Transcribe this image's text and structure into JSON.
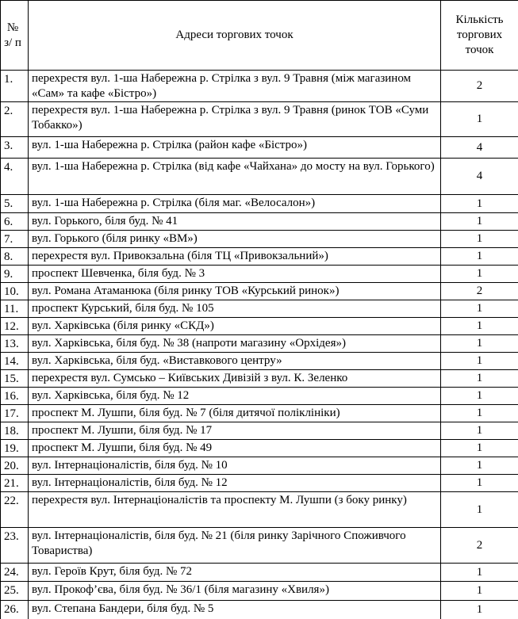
{
  "table": {
    "header": [
      "№ з/ п",
      "Адреси торгових точок",
      "Кількість торгових точок"
    ],
    "rows": [
      [
        "1.",
        "перехрестя вул. 1-ша Набережна р. Стрілка з вул. 9 Травня (між магазином «Сам» та кафе «Бістро»)",
        2
      ],
      [
        "2.",
        "перехрестя вул. 1-ша Набережна р. Стрілка з вул. 9 Травня (ринок ТОВ «Суми Тобакко»)",
        1
      ],
      [
        "3.",
        "вул. 1-ша Набережна р. Стрілка (район кафе «Бістро»)",
        4
      ],
      [
        "4.",
        "вул. 1-ша Набережна р. Стрілка (від кафе «Чайхана» до мосту на вул. Горького)",
        4
      ],
      [
        "5.",
        "вул. 1-ша Набережна р. Стрілка (біля маг. «Велосалон»)",
        1
      ],
      [
        "6.",
        "вул. Горького, біля буд. № 41",
        1
      ],
      [
        "7.",
        "вул. Горького (біля ринку «ВМ»)",
        1
      ],
      [
        "8.",
        "перехрестя вул. Привокзальна (біля ТЦ «Привокзальний»)",
        1
      ],
      [
        "9.",
        "проспект Шевченка, біля буд. № 3",
        1
      ],
      [
        "10.",
        "вул. Романа Атаманюка (біля ринку ТОВ «Курський ринок»)",
        2
      ],
      [
        "11.",
        "проспект Курський, біля буд. № 105",
        1
      ],
      [
        "12.",
        "вул. Харківська (біля ринку «СКД»)",
        1
      ],
      [
        "13.",
        "вул. Харківська, біля буд. № 38 (напроти магазину «Орхідея»)",
        1
      ],
      [
        "14.",
        "вул. Харківська, біля буд. «Виставкового центру»",
        1
      ],
      [
        "15.",
        "перехрестя вул. Сумсько – Київських Дивізій з вул. К. Зеленко",
        1
      ],
      [
        "16.",
        "вул. Харківська, біля буд. № 12",
        1
      ],
      [
        "17.",
        "проспект М. Лушпи, біля буд. № 7 (біля дитячої поліклініки)",
        1
      ],
      [
        "18.",
        "проспект М. Лушпи, біля буд. № 17",
        1
      ],
      [
        "19.",
        "проспект М. Лушпи, біля буд. № 49",
        1
      ],
      [
        "20.",
        "вул. Інтернаціоналістів, біля буд. № 10",
        1
      ],
      [
        "21.",
        "вул. Інтернаціоналістів, біля буд. № 12",
        1
      ],
      [
        "22.",
        "перехрестя вул. Інтернаціоналістів та проспекту М. Лушпи (з боку ринку)",
        1
      ],
      [
        "23.",
        "вул. Інтернаціоналістів, біля буд. № 21 (біля ринку Зарічного Споживчого Товариства)",
        2
      ],
      [
        "24.",
        "вул. Героїв Крут, біля буд. № 72",
        1
      ],
      [
        "25.",
        "вул. Прокоф’єва, біля буд. № 36/1 (біля магазину «Хвиля»)",
        1
      ],
      [
        "26.",
        "вул. Степана Бандери, біля буд. № 5",
        1
      ]
    ]
  }
}
